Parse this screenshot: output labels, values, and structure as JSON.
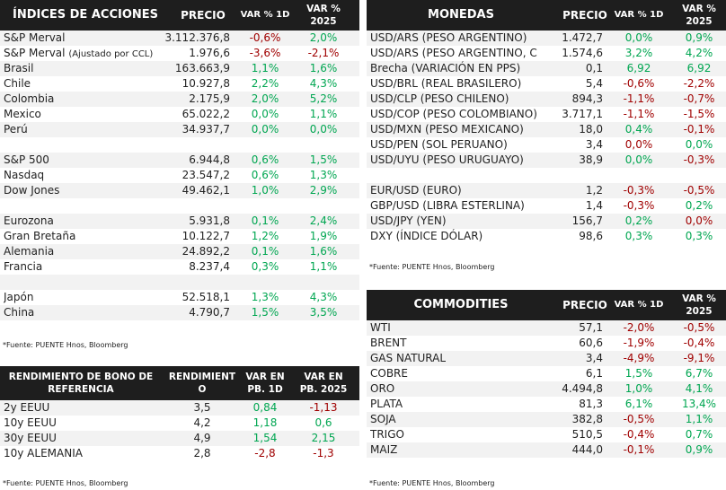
{
  "colors": {
    "header_bg": "#1e1e1e",
    "positive": "#00a651",
    "negative": "#a00000",
    "row_alt": "#f2f2f2"
  },
  "source": "*Fuente: PUENTE Hnos, Bloomberg",
  "indices": {
    "headers": [
      "ÍNDICES DE ACCIONES",
      "PRECIO",
      "VAR % 1D",
      "VAR % 2025"
    ],
    "rows": [
      [
        "S&P Merval",
        "3.112.376,8",
        "-0,6%",
        "r",
        "2,0%",
        "g"
      ],
      [
        "S&P Merval",
        "1.976,6",
        "-3,6%",
        "r",
        "-2,1%",
        "r",
        "(Ajustado por CCL)"
      ],
      [
        "Brasil",
        "163.663,9",
        "1,1%",
        "g",
        "1,6%",
        "g"
      ],
      [
        "Chile",
        "10.927,8",
        "2,2%",
        "g",
        "4,3%",
        "g"
      ],
      [
        "Colombia",
        "2.175,9",
        "2,0%",
        "g",
        "5,2%",
        "g"
      ],
      [
        "Mexico",
        "65.022,2",
        "0,0%",
        "g",
        "1,1%",
        "g"
      ],
      [
        "Perú",
        "34.937,7",
        "0,0%",
        "g",
        "0,0%",
        "g"
      ],
      null,
      [
        "S&P 500",
        "6.944,8",
        "0,6%",
        "g",
        "1,5%",
        "g"
      ],
      [
        "Nasdaq",
        "23.547,2",
        "0,6%",
        "g",
        "1,3%",
        "g"
      ],
      [
        "Dow Jones",
        "49.462,1",
        "1,0%",
        "g",
        "2,9%",
        "g"
      ],
      null,
      [
        "Eurozona",
        "5.931,8",
        "0,1%",
        "g",
        "2,4%",
        "g"
      ],
      [
        "Gran Bretaña",
        "10.122,7",
        "1,2%",
        "g",
        "1,9%",
        "g"
      ],
      [
        "Alemania",
        "24.892,2",
        "0,1%",
        "g",
        "1,6%",
        "g"
      ],
      [
        "Francia",
        "8.237,4",
        "0,3%",
        "g",
        "1,1%",
        "g"
      ],
      null,
      [
        "Japón",
        "52.518,1",
        "1,3%",
        "g",
        "4,3%",
        "g"
      ],
      [
        "China",
        "4.790,7",
        "1,5%",
        "g",
        "3,5%",
        "g"
      ]
    ]
  },
  "bonos": {
    "headers": [
      "RENDIMIENTO DE BONO DE REFERENCIA",
      "RENDIMIENT O",
      "VAR EN PB. 1D",
      "VAR EN PB. 2025"
    ],
    "rows": [
      [
        "2y EEUU",
        "3,5",
        "0,84",
        "g",
        "-1,13",
        "r"
      ],
      [
        "10y EEUU",
        "4,2",
        "1,18",
        "g",
        "0,6",
        "g"
      ],
      [
        "30y EEUU",
        "4,9",
        "1,54",
        "g",
        "2,15",
        "g"
      ],
      [
        "10y ALEMANIA",
        "2,8",
        "-2,8",
        "r",
        "-1,3",
        "r"
      ]
    ]
  },
  "monedas": {
    "headers": [
      "MONEDAS",
      "PRECIO",
      "VAR % 1D",
      "VAR % 2025"
    ],
    "rows": [
      [
        "USD/ARS (PESO ARGENTINO)",
        "1.472,7",
        "0,0%",
        "g",
        "0,9%",
        "g"
      ],
      [
        "USD/ARS (PESO ARGENTINO, C",
        "1.574,6",
        "3,2%",
        "g",
        "4,2%",
        "g"
      ],
      [
        "Brecha (VARIACIÓN EN PPS)",
        "0,1",
        "6,92",
        "g",
        "6,92",
        "g"
      ],
      [
        "USD/BRL (REAL BRASILERO)",
        "5,4",
        "-0,6%",
        "r",
        "-2,2%",
        "r"
      ],
      [
        "USD/CLP (PESO CHILENO)",
        "894,3",
        "-1,1%",
        "r",
        "-0,7%",
        "r"
      ],
      [
        "USD/COP (PESO COLOMBIANO)",
        "3.717,1",
        "-1,1%",
        "r",
        "-1,5%",
        "r"
      ],
      [
        "USD/MXN (PESO MEXICANO)",
        "18,0",
        "0,4%",
        "g",
        "-0,1%",
        "r"
      ],
      [
        "USD/PEN (SOL PERUANO)",
        "3,4",
        "0,0%",
        "r",
        "0,0%",
        "g"
      ],
      [
        "USD/UYU (PESO URUGUAYO)",
        "38,9",
        "0,0%",
        "g",
        "-0,3%",
        "r"
      ],
      null,
      [
        "EUR/USD (EURO)",
        "1,2",
        "-0,3%",
        "r",
        "-0,5%",
        "r"
      ],
      [
        "GBP/USD (LIBRA ESTERLINA)",
        "1,4",
        "-0,3%",
        "r",
        "0,2%",
        "g"
      ],
      [
        "USD/JPY (YEN)",
        "156,7",
        "0,2%",
        "g",
        "0,0%",
        "r"
      ],
      [
        "DXY (ÍNDICE DÓLAR)",
        "98,6",
        "0,3%",
        "g",
        "0,3%",
        "g"
      ]
    ]
  },
  "commodities": {
    "headers": [
      "COMMODITIES",
      "PRECIO",
      "VAR % 1D",
      "VAR % 2025"
    ],
    "rows": [
      [
        "WTI",
        "57,1",
        "-2,0%",
        "r",
        "-0,5%",
        "r"
      ],
      [
        "BRENT",
        "60,6",
        "-1,9%",
        "r",
        "-0,4%",
        "r"
      ],
      [
        "GAS NATURAL",
        "3,4",
        "-4,9%",
        "r",
        "-9,1%",
        "r"
      ],
      [
        "COBRE",
        "6,1",
        "1,5%",
        "g",
        "6,7%",
        "g"
      ],
      [
        "ORO",
        "4.494,8",
        "1,0%",
        "g",
        "4,1%",
        "g"
      ],
      [
        "PLATA",
        "81,3",
        "6,1%",
        "g",
        "13,4%",
        "g"
      ],
      [
        "SOJA",
        "382,8",
        "-0,5%",
        "r",
        "1,1%",
        "g"
      ],
      [
        "TRIGO",
        "510,5",
        "-0,4%",
        "r",
        "0,7%",
        "g"
      ],
      [
        "MAIZ",
        "444,0",
        "-0,1%",
        "r",
        "0,9%",
        "g"
      ]
    ]
  }
}
